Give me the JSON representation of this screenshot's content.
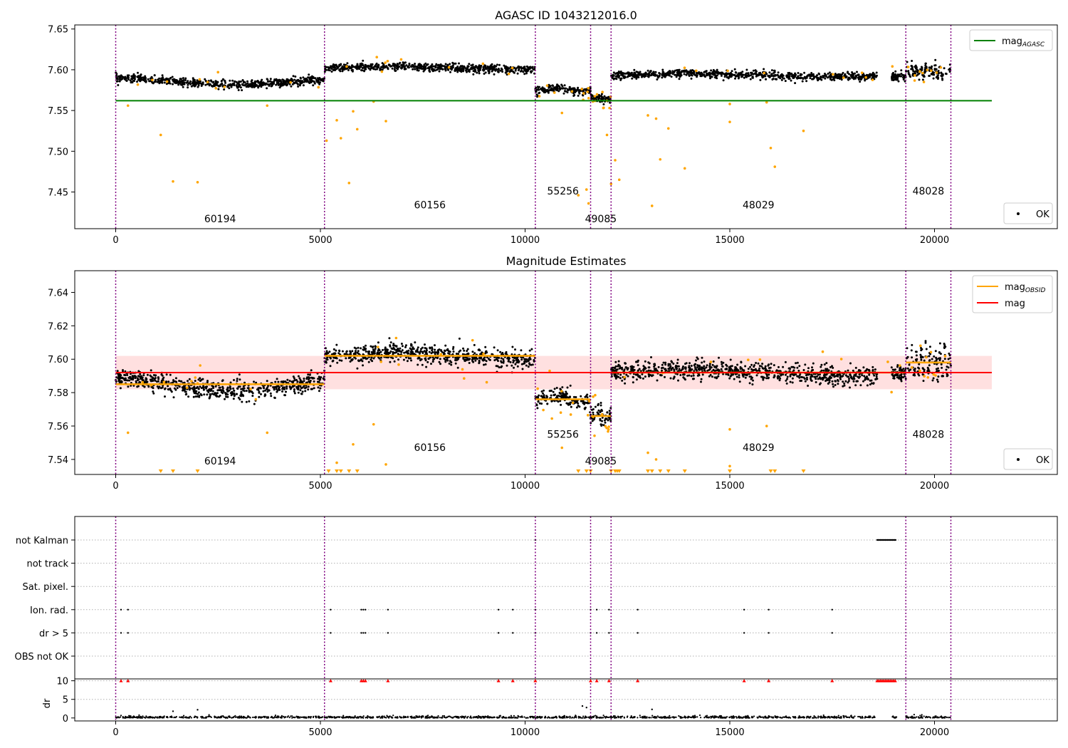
{
  "chart_data": [
    {
      "type": "scatter",
      "title": "AGASC ID 1043212016.0",
      "xlim": [
        -1000,
        23000
      ],
      "ylim": [
        7.405,
        7.655
      ],
      "xticks": [
        0,
        5000,
        10000,
        15000,
        20000
      ],
      "yticks": [
        7.45,
        7.5,
        7.55,
        7.6,
        7.65
      ],
      "ytick_labels": [
        "7.45",
        "7.50",
        "7.55",
        "7.60",
        "7.65"
      ],
      "reference_lines": [
        {
          "name": "mag_AGASC",
          "y": 7.562,
          "x_range": [
            0,
            21400
          ],
          "color": "#008000"
        }
      ],
      "legends": [
        {
          "position": "upper-right",
          "entries": [
            {
              "label": "mag",
              "subscript": "AGASC",
              "color": "#008000",
              "marker": "line"
            }
          ]
        },
        {
          "position": "lower-right",
          "entries": [
            {
              "label": "OK",
              "color": "#000000",
              "marker": "dot"
            }
          ]
        }
      ],
      "obsids": [
        {
          "label": "60194",
          "start": 0,
          "end": 5100,
          "mean": 7.586,
          "label_y": 7.413
        },
        {
          "label": "60156",
          "start": 5100,
          "end": 10250,
          "mean": 7.602,
          "label_y": 7.43
        },
        {
          "label": "55256",
          "start": 10250,
          "end": 11600,
          "mean": 7.575,
          "label_y": 7.447
        },
        {
          "label": "49085",
          "start": 11600,
          "end": 12100,
          "mean": 7.565,
          "label_y": 7.413
        },
        {
          "label": "48029",
          "start": 12100,
          "end": 19300,
          "mean": 7.593,
          "label_y": 7.43
        },
        {
          "label": "48028",
          "start": 19300,
          "end": 20400,
          "mean": 7.598,
          "label_y": 7.447
        }
      ],
      "series": [
        {
          "name": "OK",
          "color": "#000000"
        },
        {
          "color": "#FFA500"
        }
      ],
      "outliers": [
        {
          "x": 1100,
          "y": 7.52
        },
        {
          "x": 1400,
          "y": 7.463
        },
        {
          "x": 2000,
          "y": 7.462
        },
        {
          "x": 300,
          "y": 7.556
        },
        {
          "x": 5400,
          "y": 7.538
        },
        {
          "x": 5500,
          "y": 7.516
        },
        {
          "x": 5700,
          "y": 7.461
        },
        {
          "x": 5900,
          "y": 7.527
        },
        {
          "x": 6600,
          "y": 7.537
        },
        {
          "x": 5800,
          "y": 7.549
        },
        {
          "x": 5150,
          "y": 7.513
        },
        {
          "x": 10900,
          "y": 7.547
        },
        {
          "x": 11300,
          "y": 7.446
        },
        {
          "x": 11500,
          "y": 7.453
        },
        {
          "x": 11550,
          "y": 7.436
        },
        {
          "x": 12000,
          "y": 7.52
        },
        {
          "x": 12100,
          "y": 7.46
        },
        {
          "x": 12300,
          "y": 7.465
        },
        {
          "x": 12200,
          "y": 7.489
        },
        {
          "x": 13100,
          "y": 7.433
        },
        {
          "x": 13300,
          "y": 7.49
        },
        {
          "x": 13200,
          "y": 7.54
        },
        {
          "x": 13000,
          "y": 7.544
        },
        {
          "x": 13900,
          "y": 7.479
        },
        {
          "x": 15000,
          "y": 7.536
        },
        {
          "x": 15000,
          "y": 7.558
        },
        {
          "x": 16000,
          "y": 7.504
        },
        {
          "x": 16100,
          "y": 7.481
        },
        {
          "x": 16800,
          "y": 7.525
        },
        {
          "x": 15900,
          "y": 7.56
        },
        {
          "x": 13500,
          "y": 7.528
        },
        {
          "x": 3700,
          "y": 7.556
        },
        {
          "x": 6300,
          "y": 7.561
        }
      ]
    },
    {
      "type": "scatter",
      "title": "Magnitude Estimates",
      "xlim": [
        -1000,
        23000
      ],
      "ylim": [
        7.531,
        7.653
      ],
      "xticks": [
        0,
        5000,
        10000,
        15000,
        20000
      ],
      "yticks": [
        7.54,
        7.56,
        7.58,
        7.6,
        7.62,
        7.64
      ],
      "ytick_labels": [
        "7.54",
        "7.56",
        "7.58",
        "7.60",
        "7.62",
        "7.64"
      ],
      "reference_lines": [
        {
          "name": "mag",
          "y": 7.592,
          "x_range": [
            0,
            21400
          ],
          "color": "#FF0000",
          "band": [
            7.582,
            7.602
          ],
          "band_color": "rgba(255,0,0,0.12)"
        }
      ],
      "legends": [
        {
          "position": "upper-right",
          "entries": [
            {
              "label": "mag",
              "subscript": "OBSID",
              "color": "#FFA500",
              "marker": "line"
            },
            {
              "label": "mag",
              "color": "#FF0000",
              "marker": "line"
            }
          ]
        },
        {
          "position": "lower-right",
          "entries": [
            {
              "label": "OK",
              "color": "#000000",
              "marker": "dot"
            }
          ]
        }
      ],
      "obsids": [
        {
          "label": "60194",
          "start": 0,
          "end": 5100,
          "mean": 7.585,
          "label_y": 7.537
        },
        {
          "label": "60156",
          "start": 5100,
          "end": 10250,
          "mean": 7.602,
          "label_y": 7.545
        },
        {
          "label": "55256",
          "start": 10250,
          "end": 11600,
          "mean": 7.576,
          "label_y": 7.553
        },
        {
          "label": "49085",
          "start": 11600,
          "end": 12100,
          "mean": 7.566,
          "label_y": 7.537
        },
        {
          "label": "48029",
          "start": 12100,
          "end": 19300,
          "mean": 7.592,
          "label_y": 7.545
        },
        {
          "label": "48028",
          "start": 19300,
          "end": 20400,
          "mean": 7.598,
          "label_y": 7.553
        }
      ],
      "series": [
        {
          "name": "OK",
          "color": "#000000"
        },
        {
          "color": "#FFA500"
        }
      ],
      "clipped_markers_x": [
        1100,
        1400,
        2000,
        5200,
        5400,
        5500,
        5700,
        5900,
        11300,
        11500,
        11600,
        12100,
        12300,
        12200,
        12250,
        13000,
        13100,
        13300,
        13500,
        13900,
        15000,
        16000,
        16100,
        16800
      ]
    },
    {
      "type": "scatter",
      "xlim": [
        -1000,
        23000
      ],
      "xticks": [
        0,
        5000,
        10000,
        15000,
        20000
      ],
      "flag_rows": [
        "not Kalman",
        "not track",
        "Sat. pixel.",
        "Ion. rad.",
        "dr > 5",
        "OBS not OK"
      ],
      "flag_events": {
        "ion_rad": [
          130,
          300,
          5250,
          6000,
          6050,
          6100,
          6650,
          9350,
          9700,
          10250,
          11600,
          11750,
          12050,
          12750,
          15350,
          15950,
          17500
        ],
        "dr_gt_5": [
          130,
          300,
          5250,
          6000,
          6050,
          6100,
          6650,
          9350,
          9700,
          10250,
          11600,
          11750,
          12050,
          12750,
          15350,
          15950,
          17500
        ],
        "not_kalman_ranges": [
          [
            18600,
            19050
          ]
        ],
        "not_kalman_points": [
          10250,
          11600
        ]
      },
      "dr": {
        "ylabel": "dr",
        "ylim": [
          -0.8,
          10.5
        ],
        "yticks": [
          0,
          5,
          10
        ],
        "high_color": "#FF0000",
        "outliers": [
          {
            "x": 1400,
            "y": 1.8
          },
          {
            "x": 2000,
            "y": 2.2
          },
          {
            "x": 11400,
            "y": 3.2
          },
          {
            "x": 11500,
            "y": 2.8
          },
          {
            "x": 13100,
            "y": 2.3
          }
        ]
      },
      "dashed_tick_labels": [
        "not Kalman",
        "not track",
        "Sat. pixel.",
        "Ion. rad.",
        "dr > 5",
        "OBS not OK"
      ]
    }
  ],
  "colors": {
    "obsid_divider": "#800080",
    "ok_points": "#000000",
    "bad_points": "#FFA500",
    "agasc_line": "#008000",
    "mean_line": "#FF0000",
    "obsid_line": "#FFA500"
  }
}
